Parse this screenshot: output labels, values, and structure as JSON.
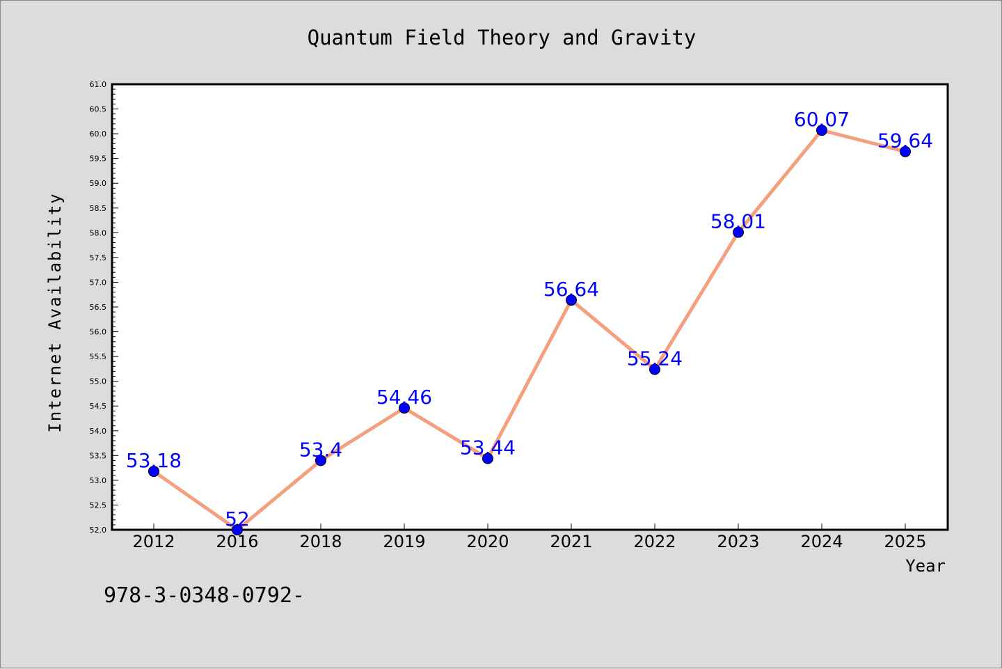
{
  "chart_data": {
    "type": "line",
    "title": "Quantum Field Theory and Gravity",
    "xlabel": "Year",
    "ylabel": "Internet Availability",
    "categories": [
      "2012",
      "2016",
      "2018",
      "2019",
      "2020",
      "2021",
      "2022",
      "2023",
      "2024",
      "2025"
    ],
    "series": [
      {
        "values": [
          53.18,
          52,
          53.4,
          54.46,
          53.44,
          56.64,
          55.24,
          58.01,
          60.07,
          59.64
        ],
        "labels": [
          "53.18",
          "52",
          "53.4",
          "54.46",
          "53.44",
          "56.64",
          "55.24",
          "58.01",
          "60.07",
          "59.64"
        ],
        "line_color": "#f4a07e",
        "marker_color": "#0000ff",
        "label_color": "#0000ff"
      }
    ],
    "ylim": [
      52.0,
      61.0
    ],
    "yticks": [
      "52.0",
      "52.5",
      "53.0",
      "53.5",
      "54.0",
      "54.5",
      "55.0",
      "55.5",
      "56.0",
      "56.5",
      "57.0",
      "57.5",
      "58.0",
      "58.5",
      "59.0",
      "59.5",
      "60.0",
      "60.5",
      "61.0"
    ],
    "grid": false,
    "legend": "none"
  },
  "footer": {
    "isbn_text": "978-3-0348-0792-"
  }
}
